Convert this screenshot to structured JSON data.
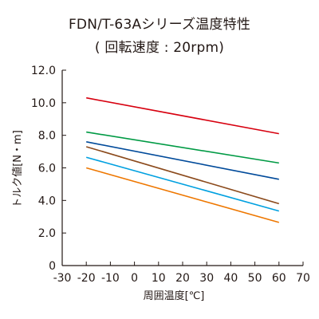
{
  "chart_data": {
    "type": "line",
    "title": "FDN/T-63Aシリーズ温度特性",
    "subtitle": "( 回転速度 : 20rpm)",
    "xlabel": "周囲温度[℃]",
    "ylabel": "トルク値[N・m]",
    "x_ticks": [
      "-30",
      "-20",
      "-10",
      "0",
      "10",
      "20",
      "30",
      "40",
      "50",
      "60",
      "70"
    ],
    "y_ticks": [
      "0",
      "2.0",
      "4.0",
      "6.0",
      "8.0",
      "10.0",
      "12.0"
    ],
    "xlim": [
      -30,
      70
    ],
    "ylim": [
      0,
      12
    ],
    "grid": false,
    "x": [
      -20,
      60
    ],
    "series": [
      {
        "values": [
          10.3,
          8.1
        ],
        "color": "#d7000f"
      },
      {
        "values": [
          8.2,
          6.3
        ],
        "color": "#009a44"
      },
      {
        "values": [
          7.6,
          5.3
        ],
        "color": "#004a9a"
      },
      {
        "values": [
          7.3,
          3.8
        ],
        "color": "#8b4a1c"
      },
      {
        "values": [
          6.65,
          3.35
        ],
        "color": "#00a0e0"
      },
      {
        "values": [
          6.0,
          2.65
        ],
        "color": "#ee7700"
      }
    ]
  }
}
